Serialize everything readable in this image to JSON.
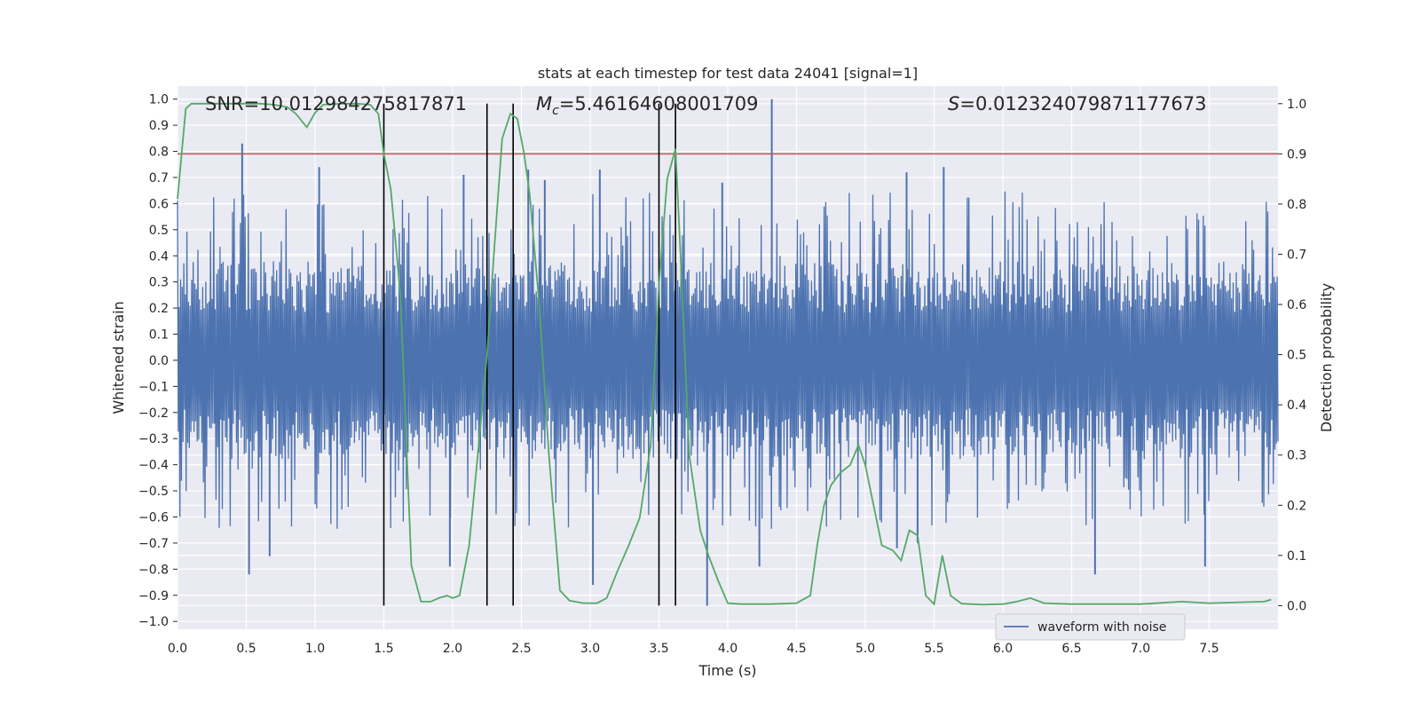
{
  "chart_data": {
    "type": "line",
    "title": "stats at each timestep for test data 24041 [signal=1]",
    "xlabel": "Time (s)",
    "ylabel": "Whitened strain",
    "y2label": "Detection probability",
    "xlim": [
      0.0,
      8.0
    ],
    "ylim": [
      -1.03,
      1.05
    ],
    "y2lim": [
      -0.047,
      1.035
    ],
    "x_ticks": [
      "0.0",
      "0.5",
      "1.0",
      "1.5",
      "2.0",
      "2.5",
      "3.0",
      "3.5",
      "4.0",
      "4.5",
      "5.0",
      "5.5",
      "6.0",
      "6.5",
      "7.0",
      "7.5"
    ],
    "y_ticks": [
      "1.0",
      "0.9",
      "0.8",
      "0.7",
      "0.6",
      "0.5",
      "0.4",
      "0.3",
      "0.2",
      "0.1",
      "0.0",
      "−0.1",
      "−0.2",
      "−0.3",
      "−0.4",
      "−0.5",
      "−0.6",
      "−0.7",
      "−0.8",
      "−0.9",
      "−1.0"
    ],
    "y2_ticks": [
      "1.0",
      "0.9",
      "0.8",
      "0.7",
      "0.6",
      "0.5",
      "0.4",
      "0.3",
      "0.2",
      "0.1",
      "0.0"
    ],
    "grid": true,
    "legend": {
      "position": "bottom-right",
      "entries": [
        "waveform with noise"
      ]
    },
    "annotations": {
      "snr": "SNR=10.012984275817871",
      "mc_symbol": "M",
      "mc_subscript": "c",
      "mc_value": "=5.46164608001709",
      "s_symbol": "S",
      "s_value": "=0.012324079871177673"
    },
    "threshold": 0.9,
    "vertical_lines": [
      1.5,
      2.25,
      2.44,
      3.5,
      3.62
    ],
    "waveform": {
      "name": "waveform with noise",
      "color": "#4c72b0",
      "samples": 1400,
      "core_amplitude": 0.33,
      "peaks": [
        [
          0.47,
          0.83
        ],
        [
          1.03,
          0.74
        ],
        [
          2.08,
          0.71
        ],
        [
          2.55,
          0.73
        ],
        [
          3.07,
          0.73
        ],
        [
          4.32,
          1.0
        ],
        [
          5.57,
          0.74
        ],
        [
          5.3,
          0.72
        ],
        [
          3.96,
          0.68
        ],
        [
          2.67,
          0.69
        ],
        [
          0.52,
          -0.82
        ],
        [
          0.67,
          -0.75
        ],
        [
          1.98,
          -0.79
        ],
        [
          3.02,
          -0.86
        ],
        [
          3.85,
          -0.94
        ],
        [
          4.23,
          -0.79
        ],
        [
          5.23,
          -0.72
        ],
        [
          6.67,
          -0.82
        ],
        [
          7.47,
          -0.79
        ],
        [
          5.38,
          -0.7
        ]
      ]
    },
    "detection_probability": {
      "color": "#55a868",
      "x": [
        0.0,
        0.06,
        0.1,
        0.2,
        0.3,
        0.4,
        0.5,
        0.6,
        0.7,
        0.8,
        0.86,
        0.94,
        1.0,
        1.06,
        1.2,
        1.3,
        1.4,
        1.46,
        1.5,
        1.55,
        1.62,
        1.7,
        1.77,
        1.84,
        1.9,
        1.96,
        2.0,
        2.05,
        2.12,
        2.2,
        2.25,
        2.3,
        2.36,
        2.42,
        2.47,
        2.52,
        2.56,
        2.63,
        2.7,
        2.78,
        2.85,
        2.95,
        3.05,
        3.12,
        3.2,
        3.28,
        3.36,
        3.44,
        3.5,
        3.56,
        3.62,
        3.66,
        3.72,
        3.8,
        3.86,
        3.93,
        4.0,
        4.1,
        4.3,
        4.5,
        4.6,
        4.65,
        4.7,
        4.75,
        4.82,
        4.89,
        4.95,
        5.0,
        5.06,
        5.12,
        5.2,
        5.26,
        5.32,
        5.38,
        5.44,
        5.5,
        5.56,
        5.62,
        5.7,
        5.85,
        6.0,
        6.1,
        6.2,
        6.3,
        6.5,
        7.0,
        7.3,
        7.5,
        7.9,
        7.95
      ],
      "y": [
        0.81,
        0.99,
        1.0,
        1.0,
        1.0,
        1.0,
        1.0,
        1.0,
        0.998,
        0.993,
        0.98,
        0.953,
        0.982,
        0.998,
        1.0,
        1.0,
        0.998,
        0.98,
        0.9,
        0.83,
        0.62,
        0.08,
        0.008,
        0.008,
        0.015,
        0.02,
        0.015,
        0.02,
        0.12,
        0.35,
        0.5,
        0.7,
        0.93,
        0.98,
        0.97,
        0.9,
        0.82,
        0.6,
        0.3,
        0.03,
        0.01,
        0.005,
        0.005,
        0.015,
        0.07,
        0.12,
        0.175,
        0.32,
        0.64,
        0.85,
        0.91,
        0.68,
        0.3,
        0.15,
        0.1,
        0.05,
        0.005,
        0.003,
        0.003,
        0.005,
        0.02,
        0.12,
        0.2,
        0.24,
        0.265,
        0.28,
        0.32,
        0.28,
        0.2,
        0.12,
        0.11,
        0.09,
        0.15,
        0.14,
        0.02,
        0.003,
        0.1,
        0.02,
        0.004,
        0.002,
        0.003,
        0.008,
        0.015,
        0.005,
        0.003,
        0.003,
        0.008,
        0.005,
        0.008,
        0.012
      ]
    }
  }
}
